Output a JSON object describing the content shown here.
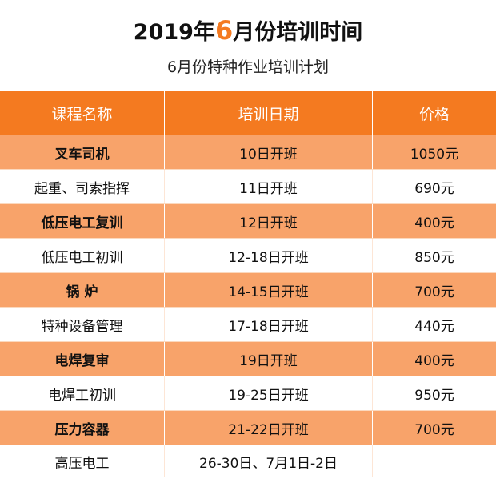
{
  "title": {
    "part1": "2019年",
    "highlight": "6",
    "part2": "月份培训时间"
  },
  "subtitle": "6月份特种作业培训计划",
  "table": {
    "headers": [
      "课程名称",
      "培训日期",
      "价格"
    ],
    "rows": [
      {
        "name": "叉车司机",
        "date": "10日开班",
        "price": "1050元"
      },
      {
        "name": "起重、司索指挥",
        "date": "11日开班",
        "price": "690元"
      },
      {
        "name": "低压电工复训",
        "date": "12日开班",
        "price": "400元"
      },
      {
        "name": "低压电工初训",
        "date": "12-18日开班",
        "price": "850元"
      },
      {
        "name": "锅 炉",
        "date": "14-15日开班",
        "price": "700元"
      },
      {
        "name": "特种设备管理",
        "date": "17-18日开班",
        "price": "440元"
      },
      {
        "name": "电焊复审",
        "date": "19日开班",
        "price": "400元"
      },
      {
        "name": "电焊工初训",
        "date": "19-25日开班",
        "price": "950元"
      },
      {
        "name": "压力容器",
        "date": "21-22日开班",
        "price": "700元"
      },
      {
        "name": "高压电工",
        "date": "26-30日、7月1日-2日",
        "price": ""
      }
    ]
  },
  "colors": {
    "header_bg": "#f47a20",
    "row_accent": "#f8a36a",
    "title_highlight": "#f47a20"
  }
}
